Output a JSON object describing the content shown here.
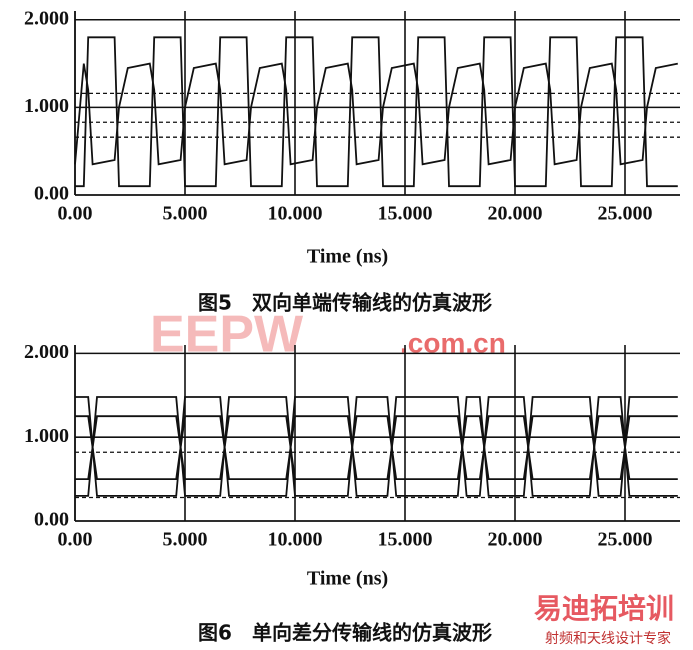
{
  "chart_data": [
    {
      "type": "line",
      "caption": "图5　双向单端传输线的仿真波形",
      "xlabel": "Time (ns)",
      "xlim": [
        0,
        27.5
      ],
      "ylim": [
        0,
        2.1
      ],
      "xticks": [
        {
          "value": 0,
          "label": "0.00"
        },
        {
          "value": 5,
          "label": "5.000"
        },
        {
          "value": 10,
          "label": "10.000"
        },
        {
          "value": 15,
          "label": "15.000"
        },
        {
          "value": 20,
          "label": "20.000"
        },
        {
          "value": 25,
          "label": "25.000"
        }
      ],
      "yticks": [
        {
          "value": 0,
          "label": "0.00"
        },
        {
          "value": 1,
          "label": "1.000"
        },
        {
          "value": 2,
          "label": "2.000"
        }
      ],
      "grid": true,
      "ref_lines": [
        1.16,
        0.83,
        0.66
      ],
      "x": [
        0,
        0.4,
        0.6,
        0.8,
        1.8,
        2,
        2.4,
        3.4,
        3.6,
        3.8,
        4.8,
        5,
        5.4,
        6.4,
        6.6,
        6.8,
        7.8,
        8,
        8.4,
        9.4,
        9.6,
        9.8,
        10.8,
        11,
        11.4,
        12.4,
        12.6,
        12.8,
        13.8,
        14,
        14.4,
        15.4,
        15.6,
        15.8,
        16.8,
        17,
        17.4,
        18.4,
        18.6,
        18.8,
        19.8,
        20,
        20.4,
        21.4,
        21.6,
        21.8,
        22.8,
        23,
        23.4,
        24.4,
        24.6,
        24.8,
        25.8,
        26,
        26.4,
        27.4
      ],
      "series": [
        {
          "color": "#111111",
          "values": [
            0.1,
            0.1,
            1.8,
            1.8,
            1.8,
            0.1,
            0.1,
            0.1,
            1.8,
            1.8,
            1.8,
            0.1,
            0.1,
            0.1,
            1.8,
            1.8,
            1.8,
            0.1,
            0.1,
            0.1,
            1.8,
            1.8,
            1.8,
            0.1,
            0.1,
            0.1,
            1.8,
            1.8,
            1.8,
            0.1,
            0.1,
            0.1,
            1.8,
            1.8,
            1.8,
            0.1,
            0.1,
            0.1,
            1.8,
            1.8,
            1.8,
            0.1,
            0.1,
            0.1,
            1.8,
            1.8,
            1.8,
            0.1,
            0.1,
            0.1,
            1.8,
            1.8,
            1.8,
            0.1,
            0.1,
            0.1
          ]
        },
        {
          "color": "#111111",
          "values": [
            0.35,
            1.5,
            1.2,
            0.35,
            0.4,
            1,
            1.45,
            1.5,
            1.2,
            0.35,
            0.4,
            1,
            1.45,
            1.5,
            1.2,
            0.35,
            0.4,
            1,
            1.45,
            1.5,
            1.2,
            0.35,
            0.4,
            1,
            1.45,
            1.5,
            1.2,
            0.35,
            0.4,
            1,
            1.45,
            1.5,
            1.2,
            0.35,
            0.4,
            1,
            1.45,
            1.5,
            1.2,
            0.35,
            0.4,
            1,
            1.45,
            1.5,
            1.2,
            0.35,
            0.4,
            1,
            1.45,
            1.5,
            1.2,
            0.35,
            0.4,
            1,
            1.45,
            1.5
          ]
        }
      ]
    },
    {
      "type": "line",
      "caption": "图6　单向差分传输线的仿真波形",
      "xlabel": "Time (ns)",
      "xlim": [
        0,
        27.5
      ],
      "ylim": [
        0,
        2.1
      ],
      "xticks": [
        {
          "value": 0,
          "label": "0.00"
        },
        {
          "value": 5,
          "label": "5.000"
        },
        {
          "value": 10,
          "label": "10.000"
        },
        {
          "value": 15,
          "label": "15.000"
        },
        {
          "value": 20,
          "label": "20.000"
        },
        {
          "value": 25,
          "label": "25.000"
        }
      ],
      "yticks": [
        {
          "value": 0,
          "label": "0.00"
        },
        {
          "value": 1,
          "label": "1.000"
        },
        {
          "value": 2,
          "label": "2.000"
        }
      ],
      "grid": true,
      "ref_lines": [
        0.82,
        0.28
      ],
      "x": [
        0,
        0.6,
        1,
        4.6,
        5,
        6.6,
        7,
        9.6,
        10,
        12.4,
        12.8,
        14.2,
        14.6,
        17.4,
        17.8,
        18.4,
        18.8,
        20.4,
        20.8,
        23.4,
        23.8,
        24.8,
        25.2,
        27.4
      ],
      "series": [
        {
          "color": "#111111",
          "values": [
            1.48,
            1.48,
            0.3,
            0.3,
            1.48,
            1.48,
            0.3,
            0.3,
            1.48,
            1.48,
            0.3,
            0.3,
            1.48,
            1.48,
            0.3,
            0.3,
            1.48,
            1.48,
            0.3,
            0.3,
            1.48,
            1.48,
            0.3,
            0.3
          ]
        },
        {
          "color": "#111111",
          "values": [
            0.3,
            0.3,
            1.48,
            1.48,
            0.3,
            0.3,
            1.48,
            1.48,
            0.3,
            0.3,
            1.48,
            1.48,
            0.3,
            0.3,
            1.48,
            1.48,
            0.3,
            0.3,
            1.48,
            1.48,
            0.3,
            0.3,
            1.48,
            1.48
          ]
        },
        {
          "color": "#111111",
          "values": [
            1.25,
            1.25,
            0.5,
            0.5,
            1.25,
            1.25,
            0.5,
            0.5,
            1.25,
            1.25,
            0.5,
            0.5,
            1.25,
            1.25,
            0.5,
            0.5,
            1.25,
            1.25,
            0.5,
            0.5,
            1.25,
            1.25,
            0.5,
            0.5
          ]
        },
        {
          "color": "#111111",
          "values": [
            0.5,
            0.5,
            1.25,
            1.25,
            0.5,
            0.5,
            1.25,
            1.25,
            0.5,
            0.5,
            1.25,
            1.25,
            0.5,
            0.5,
            1.25,
            1.25,
            0.5,
            0.5,
            1.25,
            1.25,
            0.5,
            0.5,
            1.25,
            1.25
          ]
        }
      ]
    }
  ],
  "watermarks": {
    "logo": "EEPW",
    "domain": ".com.cn",
    "brand": "易迪拓培训",
    "slogan": "射频和天线设计专家"
  }
}
